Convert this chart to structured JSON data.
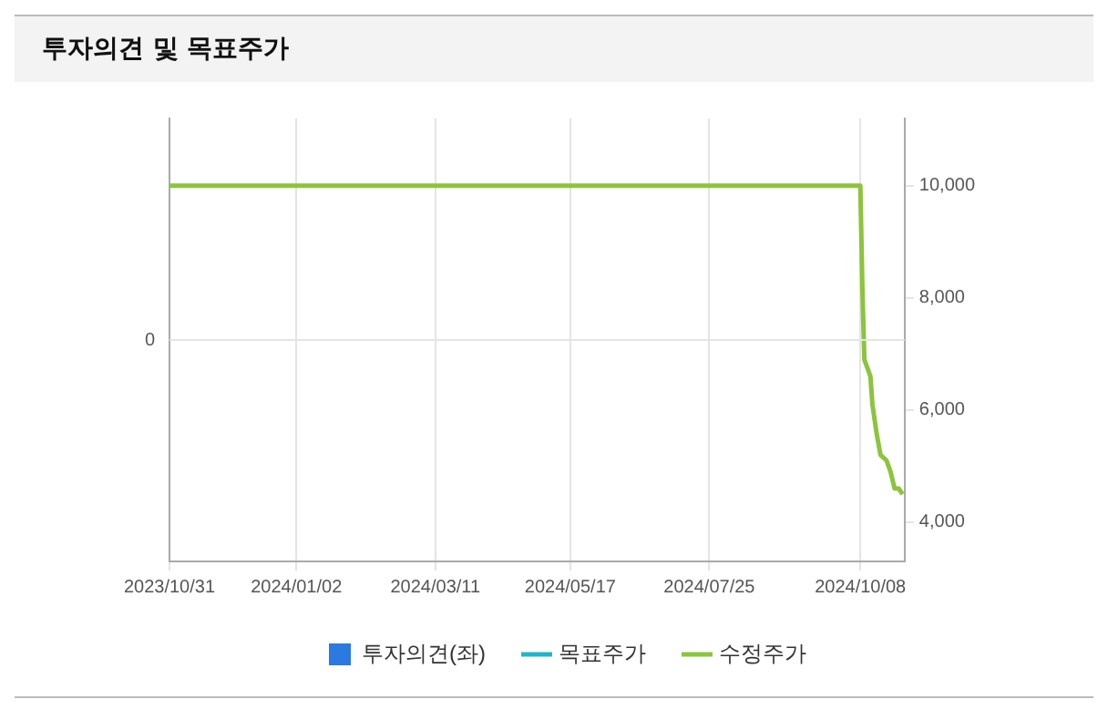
{
  "chart_data": {
    "type": "line",
    "title": "투자의견 및 목표주가",
    "x": [
      "2023-10-31",
      "2024-10-08",
      "2024-10-09",
      "2024-10-10",
      "2024-10-11",
      "2024-10-13",
      "2024-10-14",
      "2024-10-16",
      "2024-10-18",
      "2024-10-21",
      "2024-10-23",
      "2024-10-25",
      "2024-10-27",
      "2024-10-29"
    ],
    "series": [
      {
        "name": "투자의견(좌)",
        "type": "bar",
        "axis": "y",
        "color": "#2a7ae2",
        "values": [
          null,
          null,
          null,
          null,
          null,
          null,
          null,
          null,
          null,
          null,
          null,
          null,
          null,
          null
        ]
      },
      {
        "name": "목표주가",
        "type": "line",
        "axis": "y2",
        "color": "#22b5c9",
        "values": [
          null,
          null,
          null,
          null,
          null,
          null,
          null,
          null,
          null,
          null,
          null,
          null,
          null,
          null
        ]
      },
      {
        "name": "수정주가",
        "axis": "y2",
        "color": "#8cc43c",
        "values": [
          10000,
          10000,
          8200,
          6900,
          6800,
          6600,
          6100,
          5600,
          5200,
          5100,
          4900,
          4600,
          4600,
          4500
        ]
      }
    ],
    "xlim": [
      "2023-10-31",
      "2024-10-30"
    ],
    "xticks": [
      {
        "value": "2023-10-31",
        "label": "2023/10/31"
      },
      {
        "value": "2024-01-02",
        "label": "2024/01/02"
      },
      {
        "value": "2024-03-11",
        "label": "2024/03/11"
      },
      {
        "value": "2024-05-17",
        "label": "2024/05/17"
      },
      {
        "value": "2024-07-25",
        "label": "2024/07/25"
      },
      {
        "value": "2024-10-08",
        "label": "2024/10/08"
      }
    ],
    "annotations": [
      "0"
    ],
    "y2lim": [
      3300,
      11200
    ],
    "y2ticks": [
      {
        "value": 4000,
        "label": "4,000"
      },
      {
        "value": 6000,
        "label": "6,000"
      },
      {
        "value": 8000,
        "label": "8,000"
      },
      {
        "value": 10000,
        "label": "10,000"
      }
    ],
    "grid": true,
    "legend": "bottom",
    "marker": "none",
    "line_style": "solid"
  }
}
